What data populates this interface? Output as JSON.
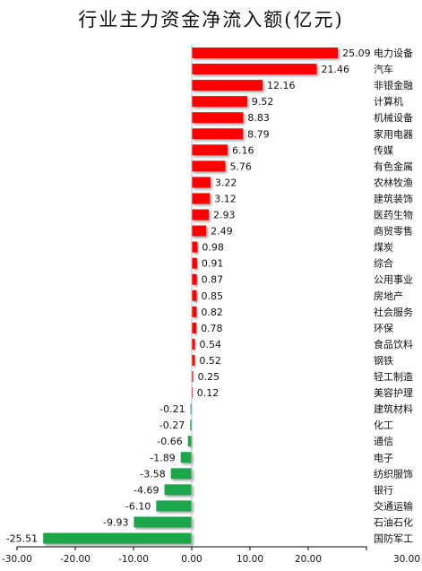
{
  "chart_data": {
    "type": "bar",
    "orientation": "horizontal",
    "title": "行业主力资金净流入额(亿元)",
    "categories": [
      "电力设备",
      "汽车",
      "非银金融",
      "计算机",
      "机械设备",
      "家用电器",
      "传媒",
      "有色金属",
      "农林牧渔",
      "建筑装饰",
      "医药生物",
      "商贸零售",
      "煤炭",
      "综合",
      "公用事业",
      "房地产",
      "社会服务",
      "环保",
      "食品饮料",
      "钢铁",
      "轻工制造",
      "美容护理",
      "建筑材料",
      "化工",
      "通信",
      "电子",
      "纺织服饰",
      "银行",
      "交通运输",
      "石油石化",
      "国防军工"
    ],
    "values": [
      25.09,
      21.46,
      12.16,
      9.52,
      8.83,
      8.79,
      6.16,
      5.76,
      3.22,
      3.12,
      2.93,
      2.49,
      0.98,
      0.91,
      0.87,
      0.85,
      0.82,
      0.78,
      0.54,
      0.52,
      0.25,
      0.12,
      -0.21,
      -0.27,
      -0.66,
      -1.89,
      -3.58,
      -4.69,
      -6.1,
      -9.93,
      -25.51
    ],
    "value_labels": [
      "25.09",
      "21.46",
      "12.16",
      "9.52",
      "8.83",
      "8.79",
      "6.16",
      "5.76",
      "3.22",
      "3.12",
      "2.93",
      "2.49",
      "0.98",
      "0.91",
      "0.87",
      "0.85",
      "0.82",
      "0.78",
      "0.54",
      "0.52",
      "0.25",
      "0.12",
      "-0.21",
      "-0.27",
      "-0.66",
      "-1.89",
      "-3.58",
      "-4.69",
      "-6.10",
      "-9.93",
      "-25.51"
    ],
    "xlim": [
      -30,
      30
    ],
    "xticks": [
      -30,
      -20,
      -10,
      0,
      10,
      20,
      30
    ],
    "xtick_labels": [
      "-30.00",
      "-20.00",
      "-10.00",
      "0.00",
      "10.00",
      "20.00",
      "30.00"
    ],
    "colors": {
      "positive": "#ff0000",
      "negative": "#1aa64b",
      "axis": "#000000"
    },
    "grid": false,
    "legend": "none"
  }
}
